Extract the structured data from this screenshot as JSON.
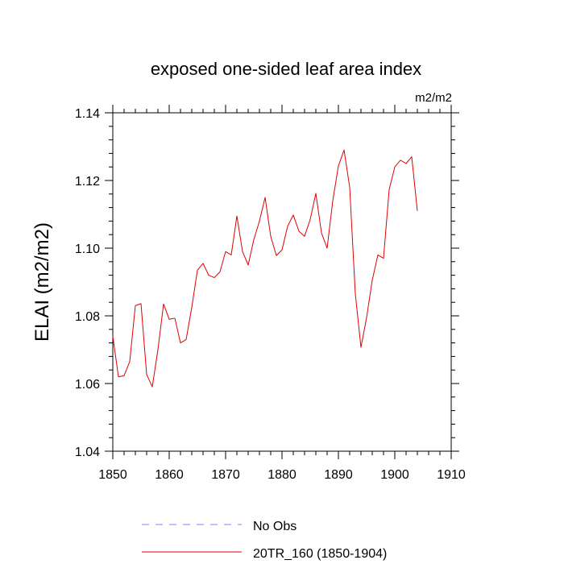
{
  "chart_data": {
    "type": "line",
    "title": "exposed one-sided leaf area index",
    "units": "m2/m2",
    "ylabel": "ELAI  (m2/m2)",
    "xlabel": "",
    "xlim": [
      1850,
      1910
    ],
    "ylim": [
      1.04,
      1.14
    ],
    "x_ticks": [
      1850,
      1860,
      1870,
      1880,
      1890,
      1900,
      1910
    ],
    "x_tick_labels": [
      "1850",
      "1860",
      "1870",
      "1880",
      "1890",
      "1900",
      "1910"
    ],
    "y_ticks": [
      1.04,
      1.06,
      1.08,
      1.1,
      1.12,
      1.14
    ],
    "y_tick_labels": [
      "1.04",
      "1.06",
      "1.08",
      "1.10",
      "1.12",
      "1.14"
    ],
    "grid": false,
    "legend_position": "bottom",
    "series": [
      {
        "name": "No Obs",
        "color": "#8080ff",
        "dash": "dashed",
        "x": [],
        "values": []
      },
      {
        "name": "20TR_160 (1850-1904)",
        "color": "#e00000",
        "dash": "solid",
        "x": [
          1850,
          1851,
          1852,
          1853,
          1854,
          1855,
          1856,
          1857,
          1858,
          1859,
          1860,
          1861,
          1862,
          1863,
          1864,
          1865,
          1866,
          1867,
          1868,
          1869,
          1870,
          1871,
          1872,
          1873,
          1874,
          1875,
          1876,
          1877,
          1878,
          1879,
          1880,
          1881,
          1882,
          1883,
          1884,
          1885,
          1886,
          1887,
          1888,
          1889,
          1890,
          1891,
          1892,
          1893,
          1894,
          1895,
          1896,
          1897,
          1898,
          1899,
          1900,
          1901,
          1902,
          1903,
          1904
        ],
        "values": [
          1.074,
          1.062,
          1.0623,
          1.0665,
          1.083,
          1.0836,
          1.0627,
          1.059,
          1.07,
          1.0835,
          1.079,
          1.0793,
          1.072,
          1.073,
          1.0825,
          1.0935,
          1.0955,
          1.092,
          1.0913,
          1.093,
          1.099,
          1.098,
          1.1095,
          1.099,
          1.095,
          1.1025,
          1.108,
          1.115,
          1.1035,
          1.0978,
          1.0995,
          1.1065,
          1.1098,
          1.105,
          1.1035,
          1.1085,
          1.1162,
          1.1045,
          1.1,
          1.114,
          1.1243,
          1.129,
          1.118,
          1.0865,
          1.0707,
          1.0795,
          1.0905,
          1.098,
          1.097,
          1.1173,
          1.124,
          1.126,
          1.125,
          1.127,
          1.111
        ]
      }
    ]
  }
}
